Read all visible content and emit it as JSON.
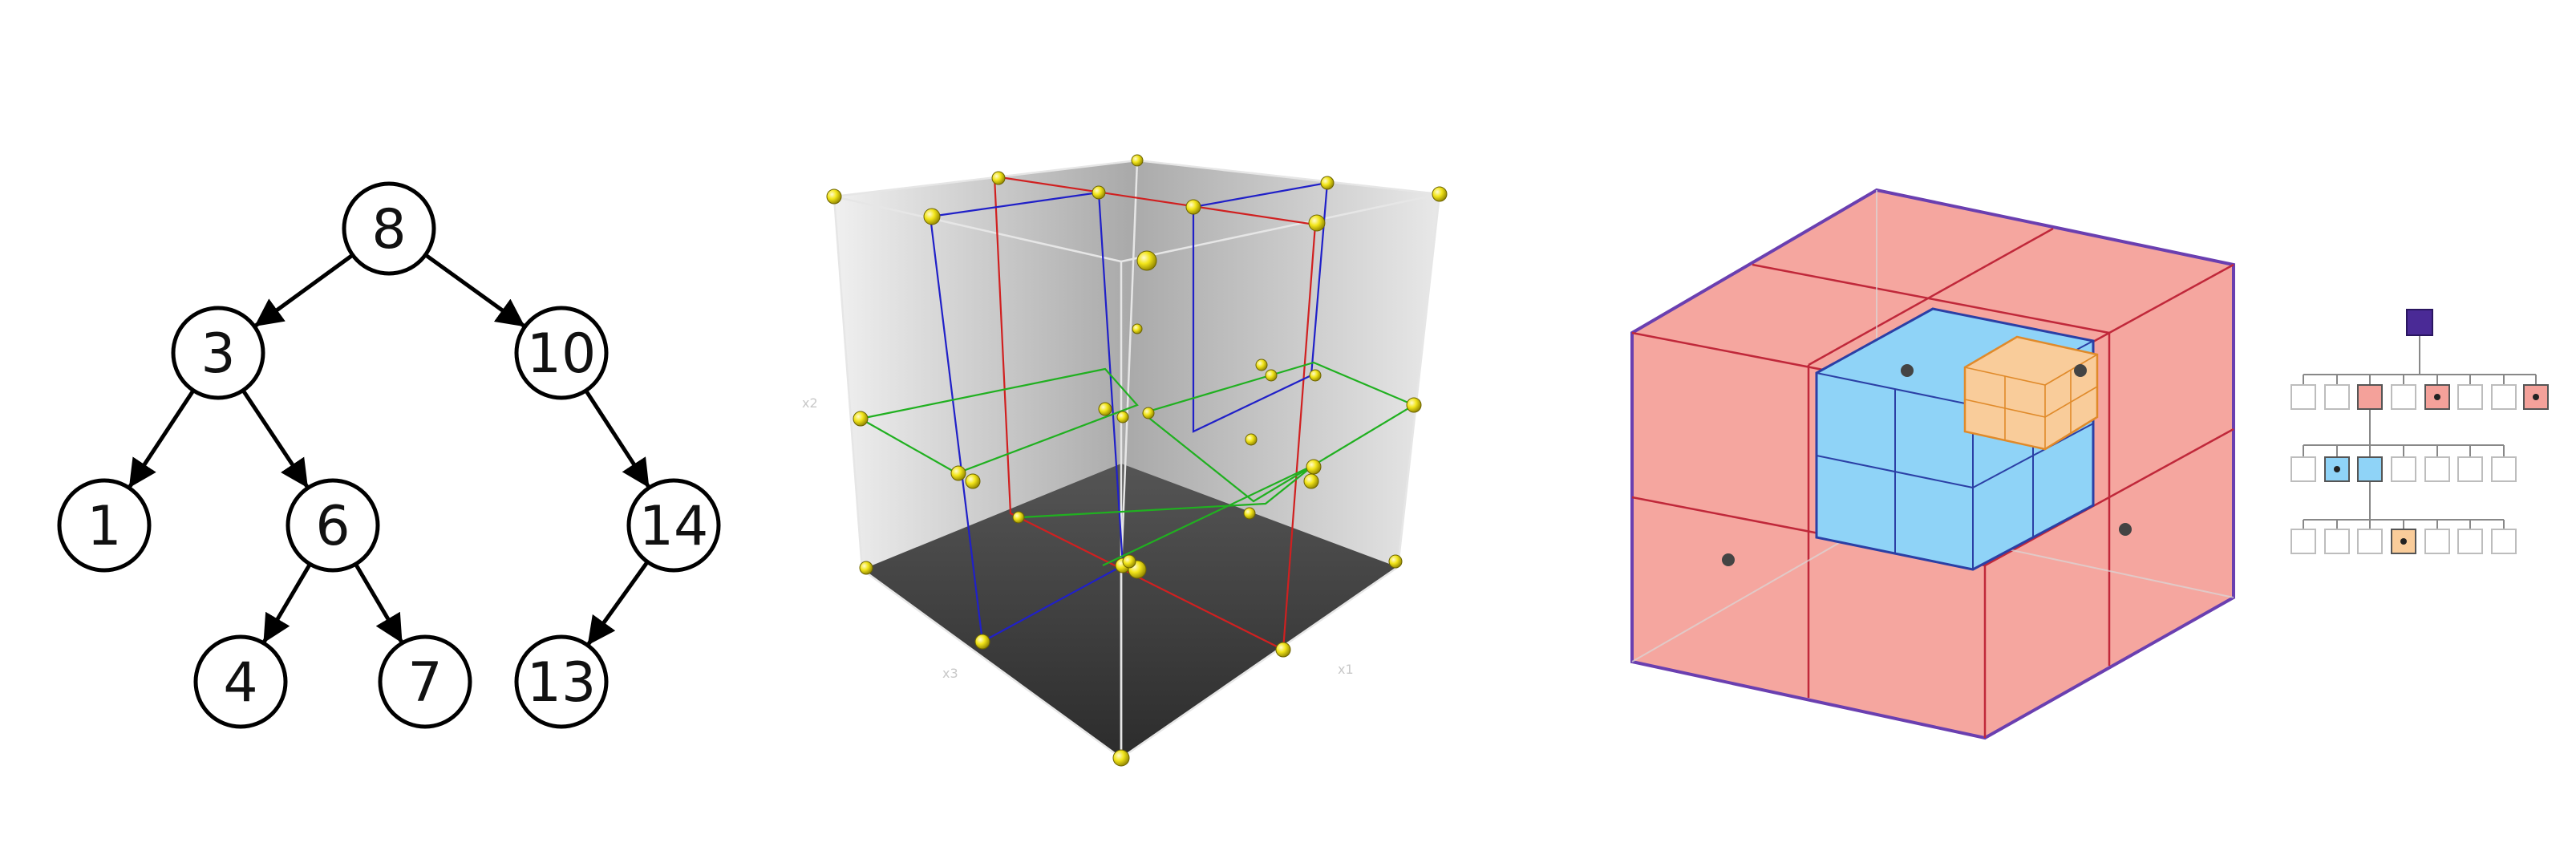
{
  "bst": {
    "nodes": [
      {
        "id": "8",
        "label": "8"
      },
      {
        "id": "3",
        "label": "3"
      },
      {
        "id": "10",
        "label": "10"
      },
      {
        "id": "1",
        "label": "1"
      },
      {
        "id": "6",
        "label": "6"
      },
      {
        "id": "14",
        "label": "14"
      },
      {
        "id": "4",
        "label": "4"
      },
      {
        "id": "7",
        "label": "7"
      },
      {
        "id": "13",
        "label": "13"
      }
    ],
    "edges": [
      [
        "8",
        "3"
      ],
      [
        "8",
        "10"
      ],
      [
        "3",
        "1"
      ],
      [
        "3",
        "6"
      ],
      [
        "10",
        "14"
      ],
      [
        "6",
        "4"
      ],
      [
        "6",
        "7"
      ],
      [
        "14",
        "13"
      ]
    ]
  },
  "kd_tree": {
    "axis_labels": {
      "x1": "x1",
      "x2": "x2",
      "x3": "x3"
    },
    "colors": {
      "first_split": "#d02020",
      "second_split": "#2020c8",
      "third_split": "#20b020",
      "points": "#f2e51a",
      "floor": "#3c3c3c"
    }
  },
  "octree": {
    "colors": {
      "level1": "#f4a19a",
      "level2": "#8fd3f7",
      "level3": "#f9cc9a",
      "outline": "#6a3fb0",
      "edge": "#c0283a"
    }
  },
  "octree_hierarchy": {
    "levels": 3,
    "slots_per_level": 8,
    "colors": {
      "root": "#4a2a96",
      "level1": "#f4a19a",
      "level2": "#8fd3f7",
      "level3": "#f9cc9a",
      "empty": "#bdbdbd"
    }
  }
}
